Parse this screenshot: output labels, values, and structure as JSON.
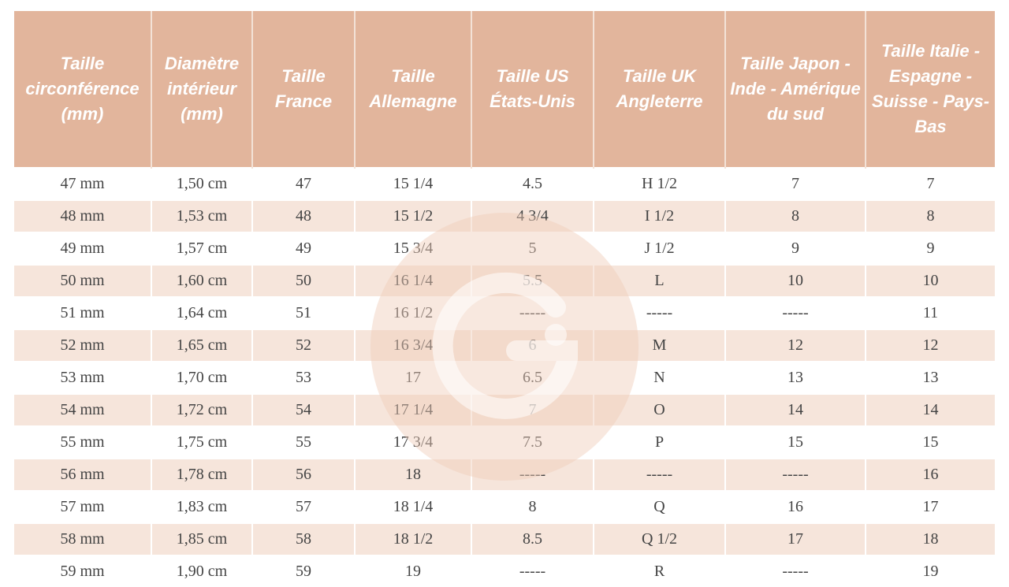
{
  "colors": {
    "header_bg": "#e2b59c",
    "alt_row_bg": "#f5e1d5",
    "header_text": "#ffffff"
  },
  "watermark": {
    "icon": "g-logo-icon",
    "text": "G"
  },
  "headers": [
    "Taille circonférence (mm)",
    "Diamètre intérieur (mm)",
    "Taille France",
    "Taille Allemagne",
    "Taille US États-Unis",
    "Taille UK Angleterre",
    "Taille Japon - Inde - Amérique du sud",
    "Taille Italie - Espagne - Suisse - Pays-Bas"
  ],
  "rows": [
    [
      "47 mm",
      "1,50 cm",
      "47",
      "15 1/4",
      "4.5",
      "H 1/2",
      "7",
      "7"
    ],
    [
      "48 mm",
      "1,53 cm",
      "48",
      "15 1/2",
      "4 3/4",
      "I 1/2",
      "8",
      "8"
    ],
    [
      "49 mm",
      "1,57 cm",
      "49",
      "15 3/4",
      "5",
      "J 1/2",
      "9",
      "9"
    ],
    [
      "50 mm",
      "1,60 cm",
      "50",
      "16 1/4",
      "5.5",
      "L",
      "10",
      "10"
    ],
    [
      "51 mm",
      "1,64 cm",
      "51",
      "16 1/2",
      "-----",
      "-----",
      "-----",
      "11"
    ],
    [
      "52 mm",
      "1,65 cm",
      "52",
      "16 3/4",
      "6",
      "M",
      "12",
      "12"
    ],
    [
      "53 mm",
      "1,70 cm",
      "53",
      "17",
      "6.5",
      "N",
      "13",
      "13"
    ],
    [
      "54 mm",
      "1,72 cm",
      "54",
      "17 1/4",
      "7",
      "O",
      "14",
      "14"
    ],
    [
      "55 mm",
      "1,75 cm",
      "55",
      "17 3/4",
      "7.5",
      "P",
      "15",
      "15"
    ],
    [
      "56 mm",
      "1,78 cm",
      "56",
      "18",
      "-----",
      "-----",
      "-----",
      "16"
    ],
    [
      "57 mm",
      "1,83 cm",
      "57",
      "18 1/4",
      "8",
      "Q",
      "16",
      "17"
    ],
    [
      "58 mm",
      "1,85 cm",
      "58",
      "18 1/2",
      "8.5",
      "Q 1/2",
      "17",
      "18"
    ],
    [
      "59 mm",
      "1,90 cm",
      "59",
      "19",
      "-----",
      "R",
      "-----",
      "19"
    ]
  ]
}
